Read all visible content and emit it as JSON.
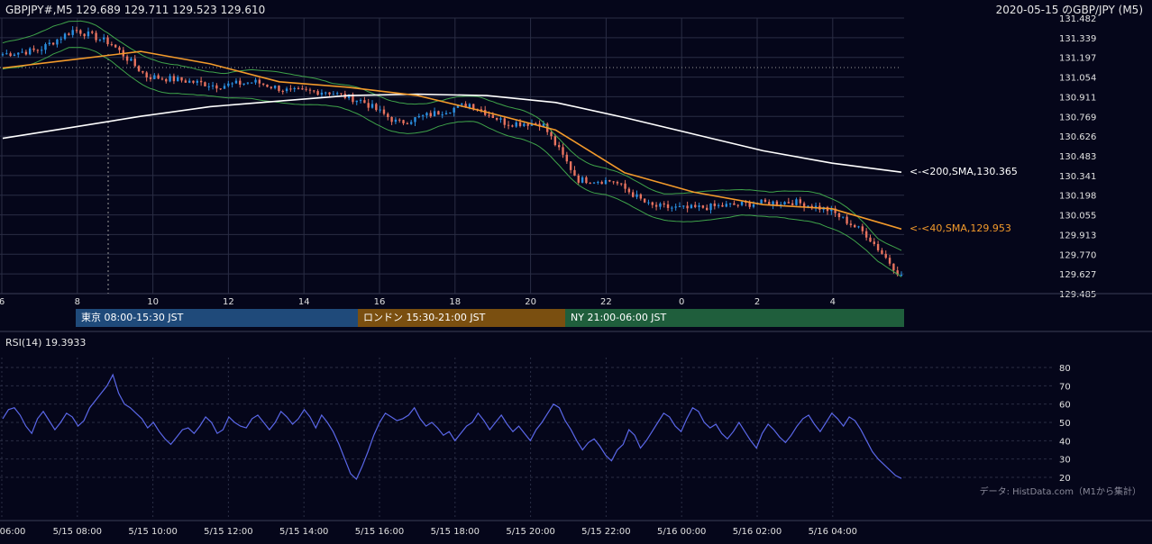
{
  "header": {
    "symbol_info": "GBPJPY#,M5 129.689 129.711 129.523 129.610",
    "title_right": "2020-05-15 のGBP/JPY (M5)"
  },
  "price_axis": {
    "ticks": [
      "131.482",
      "131.339",
      "131.197",
      "131.054",
      "130.911",
      "130.769",
      "130.626",
      "130.483",
      "130.341",
      "130.198",
      "130.055",
      "129.913",
      "129.770",
      "129.627",
      "129.485"
    ]
  },
  "hour_axis": {
    "ticks": [
      "6",
      "8",
      "10",
      "12",
      "14",
      "16",
      "18",
      "20",
      "22",
      "0",
      "2",
      "4"
    ]
  },
  "labels": {
    "sma200": "<-<200,SMA,130.365",
    "sma40": "<-<40,SMA,129.953"
  },
  "sessions": [
    {
      "label": "東京 08:00-15:30 JST",
      "color": "#1f4a7a"
    },
    {
      "label": "ロンドン 15:30-21:00 JST",
      "color": "#7a4f10"
    },
    {
      "label": "NY 21:00-06:00 JST",
      "color": "#1f5e3c"
    }
  ],
  "rsi": {
    "title": "RSI(14) 19.3933",
    "ticks": [
      "80",
      "70",
      "60",
      "50",
      "40",
      "30",
      "20"
    ]
  },
  "time_axis": {
    "ticks": [
      "06:00",
      "5/15 08:00",
      "5/15 10:00",
      "5/15 12:00",
      "5/15 14:00",
      "5/15 16:00",
      "5/15 18:00",
      "5/15 20:00",
      "5/15 22:00",
      "5/16 00:00",
      "5/16 02:00",
      "5/16 04:00"
    ]
  },
  "source_note": "データ: HistData.com（M1から集計）",
  "colors": {
    "up_candle": "#2a8fe0",
    "down_candle": "#e8735f",
    "sma40": "#f39a2b",
    "sma200": "#ffffff",
    "bollinger": "#3fa34a",
    "rsi_line": "#5a67e8",
    "grid": "#2a2d44"
  },
  "chart_data": [
    {
      "type": "candlestick",
      "title": "GBPJPY#,M5 129.689 129.711 129.523 129.610",
      "ylim": [
        129.485,
        131.482
      ],
      "x_ticks": [
        "6",
        "8",
        "10",
        "12",
        "14",
        "16",
        "18",
        "20",
        "22",
        "0",
        "2",
        "4"
      ],
      "last_ohlc": {
        "open": 129.689,
        "high": 129.711,
        "low": 129.523,
        "close": 129.61
      },
      "series": [
        {
          "name": "200,SMA",
          "last": 130.365,
          "trend": [
            130.61,
            130.69,
            130.77,
            130.84,
            130.88,
            130.92,
            130.93,
            130.92,
            130.87,
            130.76,
            130.64,
            130.52,
            130.43,
            130.365
          ]
        },
        {
          "name": "40,SMA",
          "last": 129.953,
          "trend": [
            131.12,
            131.18,
            131.24,
            131.15,
            131.02,
            130.98,
            130.92,
            130.8,
            130.67,
            130.36,
            130.22,
            130.13,
            130.1,
            129.953
          ]
        }
      ],
      "close_path": [
        131.22,
        131.25,
        131.4,
        131.3,
        131.06,
        131.03,
        130.99,
        131.02,
        130.95,
        130.95,
        130.88,
        130.72,
        130.79,
        130.86,
        130.72,
        130.72,
        130.31,
        130.3,
        130.12,
        130.1,
        130.12,
        130.14,
        130.15,
        130.09,
        129.92,
        129.61
      ]
    },
    {
      "type": "line",
      "title": "RSI(14) 19.3933",
      "ylim": [
        20,
        80
      ],
      "last": 19.3933,
      "y_ticks": [
        80,
        70,
        60,
        50,
        40,
        30,
        20
      ],
      "values": [
        52,
        57,
        58,
        54,
        48,
        44,
        52,
        56,
        51,
        46,
        50,
        55,
        53,
        48,
        51,
        58,
        62,
        66,
        70,
        76,
        66,
        60,
        58,
        55,
        52,
        47,
        50,
        45,
        41,
        38,
        42,
        46,
        47,
        44,
        48,
        53,
        50,
        44,
        46,
        53,
        50,
        48,
        47,
        52,
        54,
        50,
        46,
        50,
        56,
        53,
        49,
        52,
        57,
        53,
        47,
        54,
        50,
        45,
        38,
        30,
        22,
        19,
        26,
        34,
        43,
        50,
        55,
        53,
        51,
        52,
        54,
        58,
        52,
        48,
        50,
        47,
        43,
        45,
        40,
        44,
        48,
        50,
        55,
        51,
        46,
        50,
        54,
        49,
        45,
        48,
        44,
        40,
        46,
        50,
        55,
        60,
        58,
        51,
        46,
        40,
        35,
        39,
        41,
        37,
        32,
        29,
        35,
        38,
        46,
        43,
        36,
        40,
        45,
        50,
        55,
        53,
        48,
        45,
        52,
        58,
        56,
        50,
        47,
        49,
        44,
        41,
        45,
        50,
        45,
        40,
        36,
        44,
        49,
        46,
        42,
        39,
        43,
        48,
        52,
        54,
        49,
        45,
        50,
        55,
        52,
        48,
        53,
        51,
        46,
        40,
        34,
        30,
        27,
        24,
        21,
        19.4
      ]
    }
  ]
}
